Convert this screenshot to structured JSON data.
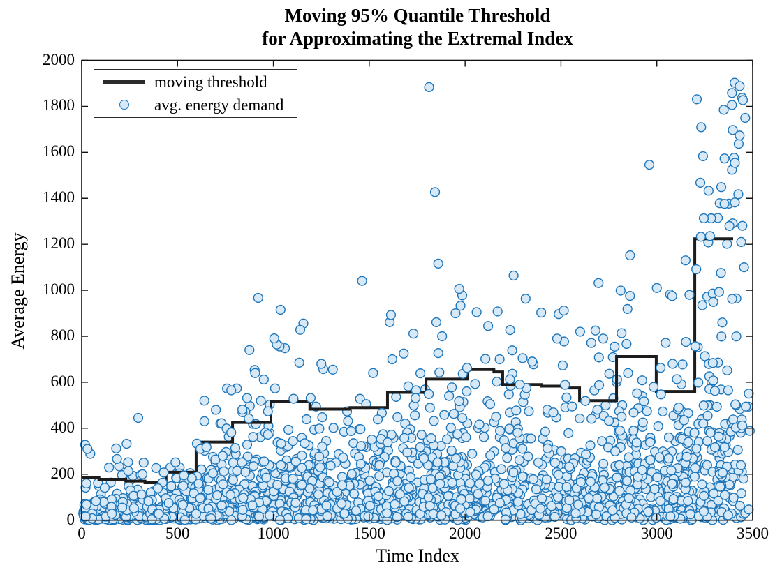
{
  "chart_data": {
    "type": "mixed",
    "title_line1": "Moving 95% Quantile Threshold",
    "title_line2": "for Approximating the Extremal Index",
    "xlabel": "Time Index",
    "ylabel": "Average Energy",
    "xlim": [
      0,
      3500
    ],
    "ylim": [
      0,
      2000
    ],
    "xticks": [
      0,
      500,
      1000,
      1500,
      2000,
      2500,
      3000,
      3500
    ],
    "yticks": [
      0,
      200,
      400,
      600,
      800,
      1000,
      1200,
      1400,
      1600,
      1800,
      2000
    ],
    "grid": false,
    "legend_position": "top-left-inside",
    "legend_items": [
      {
        "label": "moving threshold",
        "type": "line"
      },
      {
        "label": "avg. energy demand",
        "type": "marker"
      }
    ],
    "colors": {
      "threshold_line": "#1c1c1c",
      "marker_edge": "#1e76ba",
      "marker_fill": "#d7e8f7",
      "axis": "#111111",
      "text": "#000000",
      "background": "#ffffff"
    },
    "series": [
      {
        "name": "moving threshold",
        "type": "step-line",
        "line_width": 4,
        "segments_t0_t1_value": [
          [
            0,
            90,
            186
          ],
          [
            90,
            230,
            178
          ],
          [
            230,
            330,
            170
          ],
          [
            330,
            440,
            163
          ],
          [
            440,
            597,
            209
          ],
          [
            597,
            787,
            340
          ],
          [
            787,
            987,
            425
          ],
          [
            987,
            1190,
            517
          ],
          [
            1190,
            1400,
            483
          ],
          [
            1400,
            1595,
            490
          ],
          [
            1595,
            1796,
            556
          ],
          [
            1796,
            2014,
            614
          ],
          [
            2014,
            2150,
            655
          ],
          [
            2150,
            2196,
            645
          ],
          [
            2196,
            2400,
            590
          ],
          [
            2400,
            2540,
            583
          ],
          [
            2540,
            2597,
            575
          ],
          [
            2597,
            2790,
            520
          ],
          [
            2790,
            2997,
            712
          ],
          [
            2997,
            3198,
            560
          ],
          [
            3198,
            3398,
            1224
          ]
        ]
      },
      {
        "name": "avg. energy demand",
        "type": "scatter",
        "marker": "circle",
        "marker_radius_px": 6.4,
        "approx_point_count": 2265,
        "generated_cloud": {
          "note": "dense cloud of average energy demand values; ~95% of points lie below the moving threshold, exponentially distributed toward 0",
          "seed": 20,
          "n_points": 2200,
          "t_range": [
            0,
            3490
          ],
          "model": "v = threshold(t) * Exp(1) / 3, clipped to [0, 1990]"
        },
        "notable_points_t_v": [
          [
            30,
            310
          ],
          [
            180,
            312
          ],
          [
            295,
            445
          ],
          [
            640,
            520
          ],
          [
            700,
            480
          ],
          [
            758,
            573
          ],
          [
            780,
            565
          ],
          [
            838,
            481
          ],
          [
            875,
            740
          ],
          [
            905,
            640
          ],
          [
            950,
            612
          ],
          [
            1140,
            828
          ],
          [
            1250,
            680
          ],
          [
            1310,
            655
          ],
          [
            1520,
            640
          ],
          [
            1620,
            700
          ],
          [
            1680,
            725
          ],
          [
            1843,
            1427
          ],
          [
            1850,
            861
          ],
          [
            1880,
            800
          ],
          [
            1950,
            900
          ],
          [
            1969,
            1006
          ],
          [
            1976,
            933
          ],
          [
            2060,
            905
          ],
          [
            2120,
            845
          ],
          [
            2180,
            700
          ],
          [
            2235,
            827
          ],
          [
            2253,
            1064
          ],
          [
            2300,
            705
          ],
          [
            2350,
            690
          ],
          [
            2397,
            903
          ],
          [
            2480,
            790
          ],
          [
            2515,
            912
          ],
          [
            2600,
            820
          ],
          [
            2680,
            825
          ],
          [
            2720,
            790
          ],
          [
            2780,
            755
          ],
          [
            2850,
            640
          ],
          [
            2961,
            1546
          ],
          [
            3000,
            1010
          ],
          [
            3080,
            975
          ],
          [
            3150,
            1130
          ],
          [
            3170,
            980
          ],
          [
            3227,
            1468
          ],
          [
            3241,
            1583
          ],
          [
            3245,
            1313
          ],
          [
            3230,
            1233
          ],
          [
            3270,
            1433
          ],
          [
            3277,
            1236
          ],
          [
            3328,
            1379
          ],
          [
            3349,
            1785
          ],
          [
            3353,
            1376
          ],
          [
            3353,
            1573
          ],
          [
            3392,
            1524
          ],
          [
            3392,
            1806
          ],
          [
            3392,
            1858
          ],
          [
            3396,
            1697
          ],
          [
            3403,
            1576
          ],
          [
            3407,
            1382
          ],
          [
            3407,
            1554
          ],
          [
            3425,
            1418
          ],
          [
            3432,
            1673
          ],
          [
            3432,
            1888
          ],
          [
            3440,
            1210
          ],
          [
            3455,
            1100
          ]
        ]
      }
    ]
  }
}
